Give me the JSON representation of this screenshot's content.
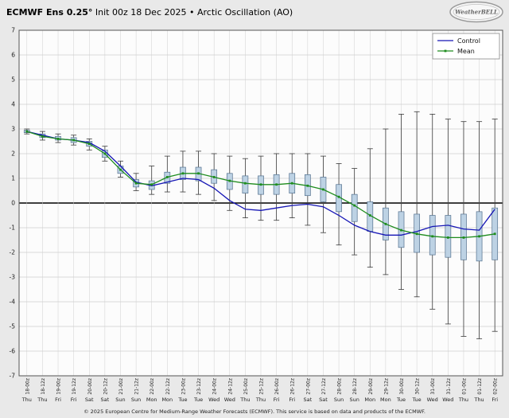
{
  "header": {
    "title_bold": "ECMWF Ens 0.25°",
    "title_rest": " Init 00z 18 Dec 2025 • Arctic Oscillation (AO)",
    "logo_text": "WeatherBELL"
  },
  "legend": {
    "position": "top-right",
    "control_label": "Control",
    "mean_label": "Mean"
  },
  "footer": {
    "copyright": "© 2025 European Centre for Medium-Range Weather Forecasts (ECMWF). This service is based on data and products of the ECMWF."
  },
  "colors": {
    "control": "#1515b5",
    "mean": "#1e8c1e",
    "box_fill": "#bdd2e4",
    "box_border": "#53708e",
    "whisker": "#3a3a3a",
    "grid": "#cfcfcf",
    "zero_line": "#000000",
    "plot_bg": "#fcfcfc",
    "page_bg": "#e9e9e9",
    "axis_text": "#222222"
  },
  "chart_data": {
    "type": "box-whisker ensemble plume with line overlays",
    "title": "ECMWF Ens 0.25° Init 00z 18 Dec 2025 • Arctic Oscillation (AO)",
    "xlabel": "",
    "ylabel": "",
    "ylim": [
      -7,
      7
    ],
    "ytick_step": 1,
    "grid": true,
    "legend_position": "top-right",
    "x_labels": [
      "18-00z",
      "18-12z",
      "19-00z",
      "19-12z",
      "20-00z",
      "20-12z",
      "21-00z",
      "21-12z",
      "22-00z",
      "22-12z",
      "23-00z",
      "23-12z",
      "24-00z",
      "24-12z",
      "25-00z",
      "25-12z",
      "26-00z",
      "26-12z",
      "27-00z",
      "27-12z",
      "28-00z",
      "28-12z",
      "29-00z",
      "29-12z",
      "30-00z",
      "30-12z",
      "31-00z",
      "31-12z",
      "01-00z",
      "01-12z",
      "02-00z"
    ],
    "day_labels": [
      "Thu",
      "Thu",
      "Fri",
      "Fri",
      "Sat",
      "Sat",
      "Sun",
      "Sun",
      "Mon",
      "Mon",
      "Tue",
      "Tue",
      "Wed",
      "Wed",
      "Thu",
      "Thu",
      "Fri",
      "Fri",
      "Sat",
      "Sat",
      "Sun",
      "Sun",
      "Mon",
      "Mon",
      "Tue",
      "Tue",
      "Wed",
      "Wed",
      "Thu",
      "Thu",
      "Fri"
    ],
    "series": [
      {
        "name": "Control",
        "values": [
          2.9,
          2.75,
          2.6,
          2.55,
          2.45,
          2.1,
          1.5,
          0.85,
          0.7,
          0.85,
          1.0,
          0.95,
          0.6,
          0.1,
          -0.25,
          -0.3,
          -0.2,
          -0.1,
          -0.05,
          -0.15,
          -0.5,
          -0.9,
          -1.15,
          -1.3,
          -1.3,
          -1.15,
          -0.95,
          -0.9,
          -1.05,
          -1.1,
          -0.25
        ]
      },
      {
        "name": "Mean",
        "values": [
          2.9,
          2.7,
          2.6,
          2.55,
          2.4,
          2.0,
          1.35,
          0.8,
          0.75,
          1.05,
          1.2,
          1.2,
          1.05,
          0.9,
          0.8,
          0.75,
          0.75,
          0.8,
          0.7,
          0.55,
          0.25,
          -0.1,
          -0.5,
          -0.85,
          -1.1,
          -1.25,
          -1.35,
          -1.4,
          -1.4,
          -1.35,
          -1.25
        ]
      }
    ],
    "boxes_note": "each box entry is [whisker_low, box_low, box_high, whisker_high]",
    "boxes": [
      [
        2.8,
        2.85,
        2.95,
        3.0
      ],
      [
        2.55,
        2.65,
        2.8,
        2.9
      ],
      [
        2.45,
        2.55,
        2.7,
        2.8
      ],
      [
        2.35,
        2.45,
        2.65,
        2.75
      ],
      [
        2.15,
        2.3,
        2.5,
        2.6
      ],
      [
        1.7,
        1.85,
        2.15,
        2.3
      ],
      [
        1.05,
        1.2,
        1.5,
        1.7
      ],
      [
        0.5,
        0.65,
        0.95,
        1.2
      ],
      [
        0.35,
        0.55,
        0.9,
        1.5
      ],
      [
        0.45,
        0.8,
        1.25,
        1.9
      ],
      [
        0.45,
        0.95,
        1.45,
        2.1
      ],
      [
        0.35,
        0.9,
        1.45,
        2.1
      ],
      [
        0.1,
        0.8,
        1.35,
        2.0
      ],
      [
        -0.3,
        0.55,
        1.2,
        1.9
      ],
      [
        -0.6,
        0.4,
        1.1,
        1.8
      ],
      [
        -0.7,
        0.35,
        1.1,
        1.9
      ],
      [
        -0.7,
        0.35,
        1.15,
        2.0
      ],
      [
        -0.6,
        0.4,
        1.2,
        2.0
      ],
      [
        -0.9,
        0.3,
        1.15,
        2.0
      ],
      [
        -1.2,
        0.05,
        1.05,
        1.9
      ],
      [
        -1.7,
        -0.35,
        0.75,
        1.6
      ],
      [
        -2.1,
        -0.75,
        0.35,
        1.4
      ],
      [
        -2.6,
        -1.15,
        0.05,
        2.2
      ],
      [
        -2.9,
        -1.5,
        -0.2,
        3.0
      ],
      [
        -3.5,
        -1.8,
        -0.35,
        3.6
      ],
      [
        -3.8,
        -2.0,
        -0.45,
        3.7
      ],
      [
        -4.3,
        -2.1,
        -0.5,
        3.6
      ],
      [
        -4.9,
        -2.2,
        -0.5,
        3.4
      ],
      [
        -5.4,
        -2.3,
        -0.45,
        3.3
      ],
      [
        -5.5,
        -2.35,
        -0.35,
        3.3
      ],
      [
        -5.2,
        -2.3,
        -0.2,
        3.4
      ]
    ]
  }
}
